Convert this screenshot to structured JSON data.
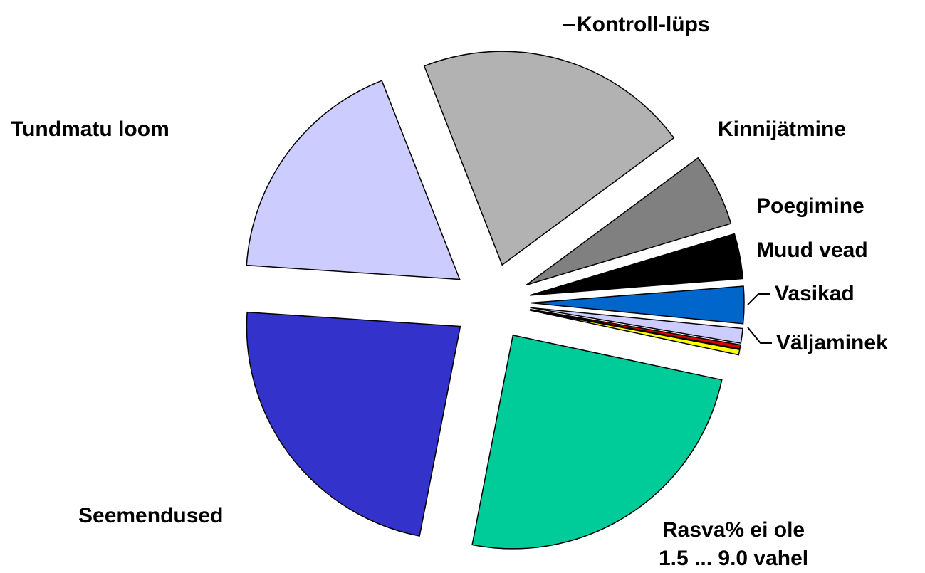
{
  "chart_data": {
    "type": "pie",
    "categories": [
      "Kontroll-lüps",
      "Kinnijätmine",
      "Poegimine",
      "Muud vead",
      "Vasikad",
      null,
      "Väljaminek",
      "Rasva% ei ole\n1.5 ... 9.0 vahel",
      "Seemendused",
      "Tundmatu loom"
    ],
    "values": [
      20.8,
      5.5,
      3.4,
      2.8,
      1.1,
      0.3,
      0.4,
      24.7,
      23,
      18
    ],
    "colors": [
      "#b2b2b2",
      "#808080",
      "#000000",
      "#0066cc",
      "#ccccff",
      "#dd0000",
      "#ffff00",
      "#00cc99",
      "#3333cc",
      "#ccccff"
    ]
  }
}
